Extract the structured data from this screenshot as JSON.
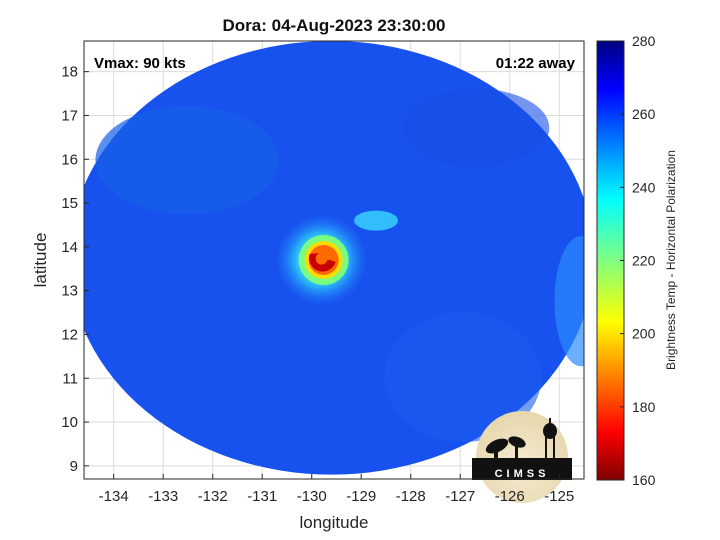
{
  "chart_data": {
    "type": "heatmap",
    "title": "Dora: 04-Aug-2023 23:30:00",
    "xlabel": "longitude",
    "ylabel": "latitude",
    "xlim": [
      -134.6,
      -124.5
    ],
    "ylim": [
      8.7,
      18.7
    ],
    "xticks": [
      -134,
      -133,
      -132,
      -131,
      -130,
      -129,
      -128,
      -127,
      -126,
      -125
    ],
    "yticks": [
      9,
      10,
      11,
      12,
      13,
      14,
      15,
      16,
      17,
      18
    ],
    "grid": true,
    "annotations": {
      "left": "Vmax: 90 kts",
      "right": "01:22 away"
    },
    "colorbar": {
      "label": "Brightness Temp - Horizontal Polarization",
      "min": 160,
      "max": 280,
      "ticks": [
        160,
        180,
        200,
        220,
        240,
        260,
        280
      ],
      "colormap": "jet"
    },
    "swath": {
      "center_lon": -129.6,
      "center_lat": 13.75,
      "radius_lon": 5.3,
      "radius_lat": 4.95,
      "background_temp": 262
    },
    "storm_eye": {
      "center_lon": -129.8,
      "center_lat": 13.7,
      "min_temp": 175
    },
    "logo_text": "CIMSS"
  },
  "colors": {
    "background": "#ffffff",
    "swath_base": "#1852ee",
    "axis": "#262626",
    "grid": "#dcdcdc"
  }
}
